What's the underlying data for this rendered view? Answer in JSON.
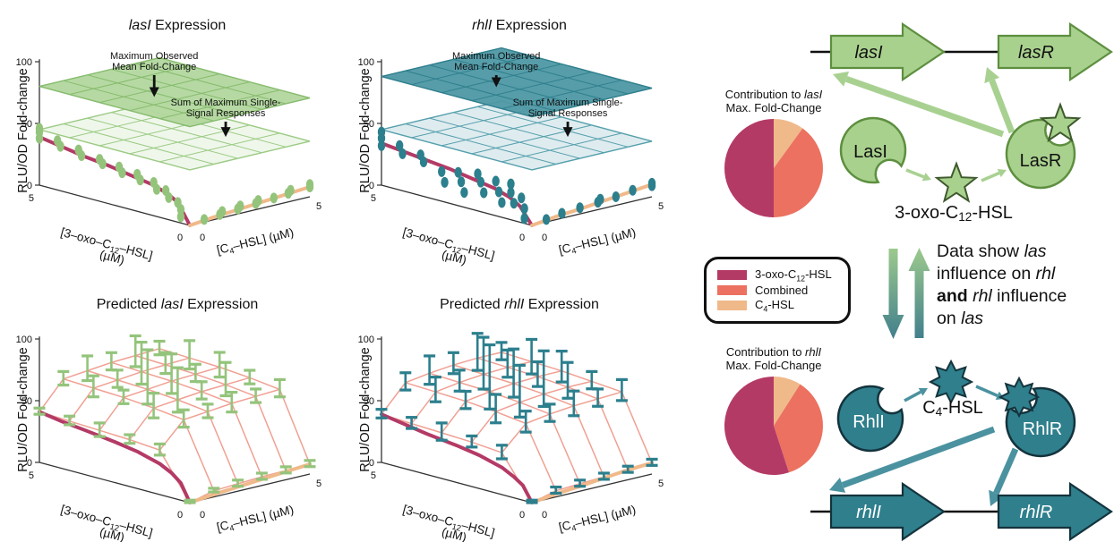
{
  "figure": {
    "background": "#ffffff"
  },
  "colors": {
    "crimson": "#b43a66",
    "salmon": "#ec7160",
    "tan": "#f0b98a",
    "green_fill": "#a9d18e",
    "green_edge": "#5d8f3f",
    "green_arrow": "#a8d191",
    "green_point": "#94c47c",
    "plane_green_fill": "#b2d79e",
    "plane_green_line": "#86bb6d",
    "mesh_green_line": "#9ccb84",
    "teal_fill": "#2f7f8d",
    "teal_edge": "#14333c",
    "teal_arrow": "#4b92a0",
    "teal_point": "#2c7f8d",
    "plane_teal_fill": "#4e98a4",
    "plane_teal_line": "#2e7f8d",
    "mesh_teal_line": "#55a0ad",
    "surface_mesh": "#f0a093",
    "axis": "#333333",
    "text": "#111111"
  },
  "axes": {
    "z_label": "RLU/OD Fold-change",
    "z_ticks": [
      "0",
      "50",
      "100"
    ],
    "axis_min": "0",
    "axis_max": "5",
    "oxo_label": [
      {
        "t": "[3–oxo–C"
      },
      {
        "t": "12",
        "sub": true
      },
      {
        "t": "–HSL]"
      }
    ],
    "unit": "(µM)",
    "c4_label": [
      {
        "t": "[C"
      },
      {
        "t": "4",
        "sub": true
      },
      {
        "t": "–HSL] (µM)"
      }
    ]
  },
  "chart_data": [
    {
      "id": "lasI-observed",
      "type": "3d-dose-response-observed",
      "title": [
        {
          "t": "lasI",
          "i": true
        },
        {
          "t": "  Expression"
        }
      ],
      "zlabel": "RLU/OD Fold-change",
      "z_range": [
        0,
        100
      ],
      "x_axis": {
        "label": "[C4-HSL] (uM)",
        "range": [
          0,
          5
        ]
      },
      "y_axis": {
        "label": "[3-oxo-C12-HSL] (uM)",
        "range": [
          0,
          5
        ]
      },
      "planes": {
        "max_observed_mean_fold_change": 80,
        "sum_of_max_single_signal": 45
      },
      "annotations": [
        [
          "Maximum Observed",
          "Mean Fold-Change"
        ],
        [
          "Sum of Maximum Single-",
          "Signal Responses"
        ]
      ],
      "curve_3oxo": {
        "frac": [
          0,
          0.08,
          0.15,
          0.25,
          0.4,
          0.55,
          0.7,
          0.85,
          1
        ],
        "z": [
          0,
          16,
          21,
          25,
          28,
          31,
          33,
          36,
          39
        ]
      },
      "curve_c4": {
        "frac": [
          0,
          0.2,
          0.4,
          0.6,
          0.8,
          1
        ],
        "z": [
          0,
          2,
          3.5,
          5,
          6.5,
          8
        ]
      },
      "points_3oxo": [
        [
          0.06,
          5
        ],
        [
          0.06,
          11
        ],
        [
          0.08,
          16
        ],
        [
          0.14,
          18
        ],
        [
          0.16,
          23
        ],
        [
          0.22,
          22
        ],
        [
          0.24,
          27
        ],
        [
          0.33,
          26
        ],
        [
          0.35,
          30
        ],
        [
          0.45,
          28
        ],
        [
          0.47,
          32
        ],
        [
          0.58,
          31
        ],
        [
          0.6,
          34
        ],
        [
          0.72,
          33
        ],
        [
          0.74,
          37
        ],
        [
          0.86,
          36
        ],
        [
          0.88,
          40
        ],
        [
          1,
          38
        ],
        [
          1,
          43
        ],
        [
          1,
          46
        ]
      ],
      "points_c4": [
        [
          0.12,
          2
        ],
        [
          0.25,
          3
        ],
        [
          0.27,
          5
        ],
        [
          0.4,
          4
        ],
        [
          0.42,
          6
        ],
        [
          0.55,
          5
        ],
        [
          0.57,
          7
        ],
        [
          0.7,
          6
        ],
        [
          0.82,
          7
        ],
        [
          0.84,
          9
        ],
        [
          1,
          8
        ],
        [
          1,
          10
        ]
      ],
      "scheme": "green"
    },
    {
      "id": "rhlI-observed",
      "type": "3d-dose-response-observed",
      "title": [
        {
          "t": "rhlI",
          "i": true
        },
        {
          "t": "  Expression"
        }
      ],
      "zlabel": "RLU/OD Fold-change",
      "z_range": [
        0,
        100
      ],
      "x_axis": {
        "label": "[C4-HSL] (uM)",
        "range": [
          0,
          5
        ]
      },
      "y_axis": {
        "label": "[3-oxo-C12-HSL] (uM)",
        "range": [
          0,
          5
        ]
      },
      "planes": {
        "max_observed_mean_fold_change": 88,
        "sum_of_max_single_signal": 45
      },
      "annotations": [
        [
          "Maximum Observed",
          "Mean Fold-Change"
        ],
        [
          "Sum of Maximum Single-",
          "Signal Responses"
        ]
      ],
      "curve_3oxo": {
        "frac": [
          0,
          0.08,
          0.15,
          0.25,
          0.4,
          0.55,
          0.7,
          0.85,
          1
        ],
        "z": [
          0,
          13,
          18,
          22,
          25,
          28,
          30,
          32,
          34
        ]
      },
      "curve_c4": {
        "frac": [
          0,
          0.2,
          0.4,
          0.6,
          0.8,
          1
        ],
        "z": [
          0,
          2.5,
          4,
          6,
          8,
          10
        ]
      },
      "points_3oxo": [
        [
          0.05,
          4
        ],
        [
          0.05,
          12
        ],
        [
          0.07,
          20
        ],
        [
          0.12,
          14
        ],
        [
          0.14,
          22
        ],
        [
          0.14,
          29
        ],
        [
          0.2,
          12
        ],
        [
          0.22,
          20
        ],
        [
          0.24,
          28
        ],
        [
          0.32,
          16
        ],
        [
          0.34,
          24
        ],
        [
          0.36,
          30
        ],
        [
          0.45,
          12
        ],
        [
          0.47,
          20
        ],
        [
          0.49,
          27
        ],
        [
          0.58,
          16
        ],
        [
          0.6,
          24
        ],
        [
          0.72,
          28
        ],
        [
          0.74,
          33
        ],
        [
          0.86,
          30
        ],
        [
          0.88,
          36
        ],
        [
          1,
          32
        ],
        [
          1,
          38
        ],
        [
          1,
          43
        ]
      ],
      "points_c4": [
        [
          0.12,
          2
        ],
        [
          0.25,
          4
        ],
        [
          0.4,
          5
        ],
        [
          0.55,
          6
        ],
        [
          0.57,
          8
        ],
        [
          0.7,
          7
        ],
        [
          0.84,
          9
        ],
        [
          1,
          9
        ],
        [
          1,
          11
        ]
      ],
      "scheme": "teal"
    },
    {
      "id": "lasI-predicted",
      "type": "3d-dose-response-predicted",
      "title": [
        {
          "t": "Predicted "
        },
        {
          "t": "lasI",
          "i": true
        },
        {
          "t": "  Expression"
        }
      ],
      "zlabel": "RLU/OD Fold-change",
      "z_range": [
        0,
        100
      ],
      "x_axis": {
        "label": "[C4-HSL] (uM)",
        "range": [
          0,
          5
        ]
      },
      "y_axis": {
        "label": "[3-oxo-C12-HSL] (uM)",
        "range": [
          0,
          5
        ]
      },
      "surface": {
        "fracs": [
          0,
          0.2,
          0.4,
          0.6,
          0.8,
          1
        ],
        "grid": [
          [
            0,
            5,
            6,
            7,
            7.5,
            8
          ],
          [
            36,
            56,
            58,
            60,
            61,
            62
          ],
          [
            38,
            59,
            61,
            63,
            64,
            65
          ],
          [
            39,
            61,
            63,
            65,
            66,
            67
          ],
          [
            40,
            62,
            64,
            66,
            67,
            68
          ],
          [
            41,
            63,
            65,
            67,
            68,
            69
          ]
        ]
      },
      "err_up": [
        [
          2,
          2,
          3,
          3,
          3,
          3
        ],
        [
          5,
          8,
          6,
          9,
          6,
          8
        ],
        [
          4,
          12,
          26,
          8,
          18,
          6
        ],
        [
          6,
          6,
          32,
          22,
          8,
          12
        ],
        [
          4,
          10,
          8,
          24,
          10,
          14
        ],
        [
          3,
          6,
          12,
          8,
          16,
          6
        ]
      ],
      "err_dn": [
        [
          1,
          1,
          2,
          2,
          2,
          2
        ],
        [
          4,
          6,
          5,
          7,
          5,
          6
        ],
        [
          3,
          8,
          10,
          6,
          9,
          5
        ],
        [
          5,
          5,
          12,
          10,
          6,
          8
        ],
        [
          3,
          7,
          6,
          10,
          7,
          9
        ],
        [
          2,
          5,
          8,
          6,
          9,
          5
        ]
      ],
      "curve_3oxo": {
        "frac": [
          0,
          0.06,
          0.12,
          0.2,
          0.35,
          0.5,
          0.7,
          0.85,
          1
        ],
        "z": [
          0,
          14,
          20,
          25,
          30,
          33,
          36,
          38,
          41
        ]
      },
      "curve_c4": {
        "frac": [
          0,
          0.2,
          0.4,
          0.6,
          0.8,
          1
        ],
        "z": [
          0,
          2,
          3.5,
          5,
          6.5,
          8
        ]
      },
      "scheme": "green"
    },
    {
      "id": "rhlI-predicted",
      "type": "3d-dose-response-predicted",
      "title": [
        {
          "t": "Predicted "
        },
        {
          "t": "rhlI",
          "i": true
        },
        {
          "t": "  Expression"
        }
      ],
      "zlabel": "RLU/OD Fold-change",
      "z_range": [
        0,
        100
      ],
      "x_axis": {
        "label": "[C4-HSL] (uM)",
        "range": [
          0,
          5
        ]
      },
      "y_axis": {
        "label": "[3-oxo-C12-HSL] (uM)",
        "range": [
          0,
          5
        ]
      },
      "surface": {
        "fracs": [
          0,
          0.2,
          0.4,
          0.6,
          0.8,
          1
        ],
        "grid": [
          [
            0,
            5,
            6,
            7,
            8,
            9
          ],
          [
            34,
            53,
            56,
            58,
            59,
            60
          ],
          [
            36,
            56,
            59,
            61,
            62,
            62
          ],
          [
            37,
            58,
            61,
            63,
            64,
            64
          ],
          [
            38,
            59,
            62,
            64,
            65,
            65
          ],
          [
            39,
            60,
            63,
            65,
            66,
            66
          ]
        ]
      },
      "err_up": [
        [
          2,
          3,
          3,
          3,
          3,
          3
        ],
        [
          6,
          10,
          8,
          12,
          8,
          10
        ],
        [
          5,
          14,
          30,
          35,
          20,
          8
        ],
        [
          8,
          8,
          38,
          28,
          12,
          16
        ],
        [
          5,
          12,
          10,
          30,
          14,
          18
        ],
        [
          4,
          8,
          14,
          10,
          20,
          8
        ]
      ],
      "err_dn": [
        [
          1,
          2,
          2,
          2,
          2,
          2
        ],
        [
          5,
          7,
          6,
          8,
          6,
          7
        ],
        [
          4,
          9,
          12,
          10,
          9,
          6
        ],
        [
          6,
          6,
          14,
          11,
          8,
          9
        ],
        [
          4,
          8,
          7,
          12,
          8,
          10
        ],
        [
          3,
          6,
          9,
          7,
          10,
          6
        ]
      ],
      "curve_3oxo": {
        "frac": [
          0,
          0.06,
          0.12,
          0.2,
          0.35,
          0.5,
          0.7,
          0.85,
          1
        ],
        "z": [
          0,
          12,
          17,
          22,
          27,
          30,
          33,
          36,
          39
        ]
      },
      "curve_c4": {
        "frac": [
          0,
          0.2,
          0.4,
          0.6,
          0.8,
          1
        ],
        "z": [
          0,
          2.5,
          4,
          6,
          8,
          9
        ]
      },
      "scheme": "teal"
    },
    {
      "id": "pie-lasI",
      "type": "pie",
      "title": [
        {
          "t": "Contribution to "
        },
        {
          "t": "lasI",
          "i": true
        },
        {
          "t": "\n"
        },
        {
          "t": "Max. Fold-Change"
        }
      ],
      "slices": [
        {
          "label": "C4-HSL",
          "pct": 10,
          "color": "tan"
        },
        {
          "label": "Combined",
          "pct": 40,
          "color": "salmon"
        },
        {
          "label": "3-oxo-C12-HSL",
          "pct": 50,
          "color": "crimson"
        }
      ],
      "start_at_deg": -90,
      "clockwise": true
    },
    {
      "id": "pie-rhlI",
      "type": "pie",
      "title": [
        {
          "t": "Contribution to "
        },
        {
          "t": "rhlI",
          "i": true
        },
        {
          "t": "\n"
        },
        {
          "t": "Max. Fold-Change"
        }
      ],
      "slices": [
        {
          "label": "C4-HSL",
          "pct": 9,
          "color": "tan"
        },
        {
          "label": "Combined",
          "pct": 36,
          "color": "salmon"
        },
        {
          "label": "3-oxo-C12-HSL",
          "pct": 55,
          "color": "crimson"
        }
      ],
      "start_at_deg": -90,
      "clockwise": true
    }
  ],
  "legend": {
    "items": [
      {
        "label": [
          {
            "t": "3-oxo-C"
          },
          {
            "t": "12",
            "sub": true
          },
          {
            "t": "-HSL"
          }
        ],
        "color_key": "crimson"
      },
      {
        "label": [
          {
            "t": "Combined"
          }
        ],
        "color_key": "salmon"
      },
      {
        "label": [
          {
            "t": "C"
          },
          {
            "t": "4",
            "sub": true
          },
          {
            "t": "-HSL"
          }
        ],
        "color_key": "tan"
      }
    ]
  },
  "diagram": {
    "las": {
      "gene_left": "lasI",
      "gene_right": "lasR",
      "protein_left": "LasI",
      "protein_right": "LasR",
      "signal": [
        {
          "t": "3-oxo-C"
        },
        {
          "t": "12",
          "sub": true
        },
        {
          "t": "-HSL"
        }
      ]
    },
    "rhl": {
      "gene_left": "rhlI",
      "gene_right": "rhlR",
      "protein_left": "RhlI",
      "protein_right": "RhlR",
      "signal": [
        {
          "t": "C"
        },
        {
          "t": "4",
          "sub": true
        },
        {
          "t": "-HSL"
        }
      ]
    },
    "influence_text": [
      {
        "t": "Data show "
      },
      {
        "t": "las",
        "i": true
      },
      {
        "t": "\n"
      },
      {
        "t": "influence on "
      },
      {
        "t": "rhl",
        "i": true
      },
      {
        "t": "\n"
      },
      {
        "t": "and",
        "b": true
      },
      {
        "t": " "
      },
      {
        "t": "rhl",
        "i": true
      },
      {
        "t": " influence"
      },
      {
        "t": "\n"
      },
      {
        "t": "on "
      },
      {
        "t": "las",
        "i": true
      }
    ]
  }
}
